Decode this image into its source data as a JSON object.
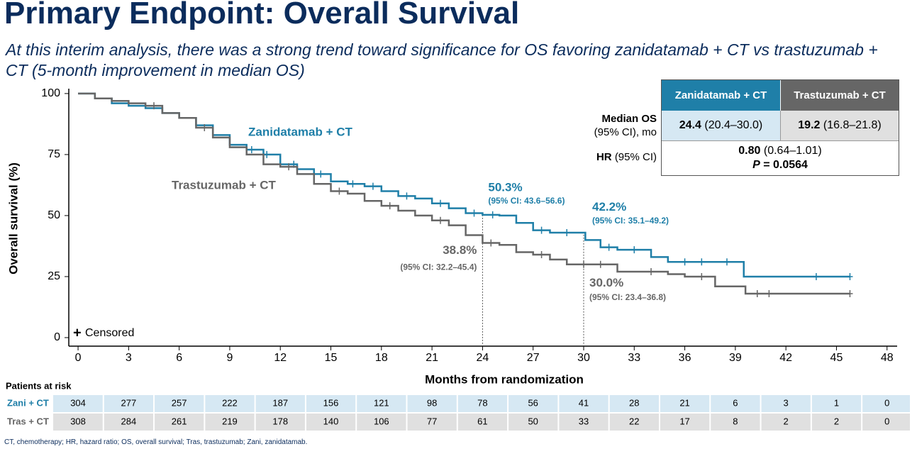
{
  "title": "Primary Endpoint: Overall Survival",
  "subtitle": "At this interim analysis, there was a strong trend toward significance for OS favoring zanidatamab + CT vs trastuzumab + CT (5-month improvement in median OS)",
  "chart_data": {
    "type": "step",
    "x_label": "Months from randomization",
    "y_label": "Overall survival (%)",
    "xlim": [
      -0.55,
      48.6
    ],
    "ylim": [
      -3.5,
      102
    ],
    "xticks": [
      0,
      3,
      6,
      9,
      12,
      15,
      18,
      21,
      24,
      27,
      30,
      33,
      36,
      39,
      42,
      45,
      48
    ],
    "yticks": [
      0,
      25,
      50,
      75,
      100
    ],
    "censored_label": "Censored",
    "censored_symbol": "+",
    "series": [
      {
        "name": "Zanidatamab + CT",
        "color": "#1f7fa8",
        "x": [
          0,
          1,
          2,
          3,
          4,
          5,
          6,
          7,
          8,
          9,
          10,
          11,
          12,
          13,
          14,
          15,
          16,
          17,
          18,
          19,
          20,
          21,
          22,
          23,
          24,
          25,
          26,
          27,
          28,
          30.1,
          31,
          32,
          34,
          35,
          39.5,
          45.8
        ],
        "values": [
          100,
          98,
          96,
          95,
          94,
          92,
          90,
          87,
          83,
          79,
          77,
          75,
          71,
          69,
          67,
          64,
          63,
          62,
          60,
          58,
          57,
          55,
          53,
          51,
          50.3,
          50,
          47,
          44,
          43,
          40,
          37,
          36,
          33,
          31,
          25,
          25
        ],
        "censored_x": [
          10.3,
          11.2,
          12.8,
          14.4,
          16.3,
          17.5,
          19.5,
          21.5,
          23.5,
          24.6,
          27.5,
          29,
          31.5,
          33,
          36,
          37,
          38.5,
          43.8,
          45.8
        ],
        "censored_y": [
          77,
          75,
          71,
          67,
          63,
          62,
          58,
          55,
          51,
          50.3,
          44,
          43,
          37,
          36,
          31,
          31,
          31,
          25,
          25
        ]
      },
      {
        "name": "Trastuzumab + CT",
        "color": "#666666",
        "x": [
          0,
          1,
          2,
          3,
          4,
          5,
          6,
          7,
          8,
          9,
          10,
          11,
          12,
          13,
          14,
          15,
          16,
          17,
          18,
          19,
          20,
          21,
          22,
          23,
          24,
          25,
          26,
          27,
          28,
          29,
          32,
          35,
          36,
          37.8,
          39.6,
          45.8
        ],
        "values": [
          100,
          98,
          97,
          96,
          95,
          92,
          90,
          86,
          82,
          78,
          75,
          71,
          70,
          67,
          63,
          60,
          59,
          56,
          54,
          52,
          50,
          48,
          46,
          42,
          38.8,
          38,
          35,
          34,
          32,
          30,
          27,
          26,
          25,
          21,
          18,
          18
        ],
        "censored_x": [
          4.5,
          7.5,
          12.5,
          15.5,
          18.5,
          21.5,
          24.5,
          27.5,
          30,
          31,
          34,
          37,
          40.3,
          41,
          45.8
        ],
        "censored_y": [
          95,
          86,
          70,
          60,
          54,
          48,
          38.8,
          34,
          30,
          30,
          27,
          25,
          18,
          18,
          18
        ]
      }
    ],
    "annotations": [
      {
        "series": 0,
        "x": 24,
        "value": 50.3,
        "label": "50.3%",
        "ci": "(95% CI: 43.6–56.6)"
      },
      {
        "series": 0,
        "x": 30,
        "value": 42.2,
        "label": "42.2%",
        "ci": "(95% CI: 35.1–49.2)"
      },
      {
        "series": 1,
        "x": 24,
        "value": 38.8,
        "label": "38.8%",
        "ci": "(95% CI: 32.2–45.4)"
      },
      {
        "series": 1,
        "x": 30,
        "value": 30.0,
        "label": "30.0%",
        "ci": "(95% CI: 23.4–36.8)"
      }
    ],
    "risk_table": {
      "title": "Patients at risk",
      "rows": [
        {
          "label": "Zani + CT",
          "values": [
            304,
            277,
            257,
            222,
            187,
            156,
            121,
            98,
            78,
            56,
            41,
            28,
            21,
            6,
            3,
            1,
            0
          ]
        },
        {
          "label": "Tras + CT",
          "values": [
            308,
            284,
            261,
            219,
            178,
            140,
            106,
            77,
            61,
            50,
            33,
            22,
            17,
            8,
            2,
            2,
            0
          ]
        }
      ]
    }
  },
  "table": {
    "headers": [
      "Zanidatamab + CT",
      "Trastuzumab + CT"
    ],
    "median_label": "Median OS",
    "median_sub": "(95% CI), mo",
    "median": [
      {
        "value": "24.4",
        "ci": "(20.4–30.0)"
      },
      {
        "value": "19.2",
        "ci": "(16.8–21.8)"
      }
    ],
    "hr_label": "HR",
    "hr_sub": "(95% CI)",
    "hr_value": "0.80",
    "hr_ci": "(0.64–1.01)",
    "p_label": "P",
    "p_value": "= 0.0564"
  },
  "footnote": "CT, chemotherapy; HR, hazard ratio; OS, overall survival; Tras, trastuzumab; Zani, zanidatamab."
}
